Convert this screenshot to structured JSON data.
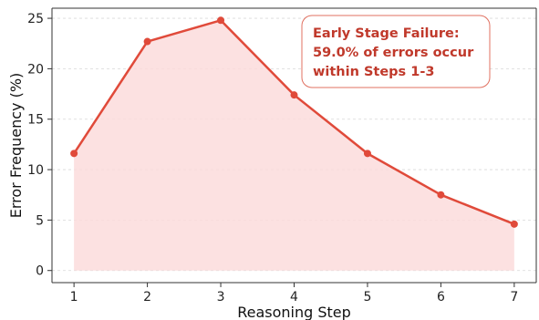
{
  "chart_data": {
    "type": "area",
    "xlabel": "Reasoning Step",
    "ylabel": "Error Frequency (%)",
    "x": [
      1,
      2,
      3,
      4,
      5,
      6,
      7
    ],
    "series": [
      {
        "values": [
          11.6,
          22.7,
          24.8,
          17.4,
          11.6,
          7.5,
          4.6
        ]
      }
    ],
    "xlim": [
      0.7,
      7.3
    ],
    "ylim": [
      -1.2,
      26
    ],
    "xticks": [
      1,
      2,
      3,
      4,
      5,
      6,
      7
    ],
    "yticks": [
      0,
      5,
      10,
      15,
      20,
      25
    ],
    "grid": "horizontal dashed",
    "annotation": {
      "lines": [
        "Early Stage Failure:",
        "59.0% of errors occur",
        "within Steps 1-3"
      ]
    },
    "colors": {
      "line": "#e04a3a",
      "fill": "#fbdcdc",
      "annotation_text": "#c0392b",
      "annotation_border": "#e07060",
      "grid": "#d8d8d8",
      "axis": "#333333"
    }
  }
}
